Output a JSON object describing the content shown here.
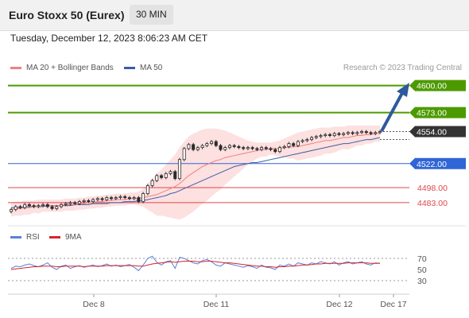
{
  "header": {
    "title": "Euro Stoxx 50 (Eurex)",
    "timeframe": "30 MIN",
    "datetime": "Tuesday, December 12, 2023 8:06:23 AM CET"
  },
  "legend": {
    "ma_bb": "MA 20 + Bollinger Bands",
    "ma50": "MA 50",
    "rsi": "RSI",
    "rsi_ma": "9MA"
  },
  "credit": "Research © 2023 Trading Central",
  "colors": {
    "candle": "#2b2b2b",
    "bollinger_fill": "#fde0e0",
    "ma20": "#f08080",
    "ma50": "#3b5da8",
    "resistance": "#4d9a00",
    "support_blue": "#2f65d6",
    "support_red": "#e0474c",
    "current": "#333333",
    "arrow": "#2d5a9a",
    "rsi": "#5b7fd6",
    "rsi_ma": "#d9222a"
  },
  "chart_data": [
    {
      "type": "candlestick",
      "y_range": [
        4467,
        4610
      ],
      "x_ticks": [
        "Dec 8",
        "Dec 11",
        "Dec 12",
        "Dec 17"
      ],
      "levels": [
        {
          "value": 4600.0,
          "label": "4600.00",
          "kind": "resistance"
        },
        {
          "value": 4573.0,
          "label": "4573.00",
          "kind": "resistance"
        },
        {
          "value": 4554.0,
          "label": "4554.00",
          "kind": "current"
        },
        {
          "value": 4522.0,
          "label": "4522.00",
          "kind": "support_blue"
        },
        {
          "value": 4498.0,
          "label": "4498.00",
          "kind": "support_red"
        },
        {
          "value": 4483.0,
          "label": "4483.00",
          "kind": "support_red"
        }
      ],
      "close": [
        4476,
        4479,
        4478,
        4481,
        4480,
        4479,
        4480,
        4481,
        4479,
        4477,
        4479,
        4481,
        4482,
        4483,
        4482,
        4484,
        4485,
        4484,
        4486,
        4487,
        4486,
        4488,
        4487,
        4488,
        4489,
        4488,
        4487,
        4488,
        4484,
        4492,
        4500,
        4505,
        4510,
        4508,
        4512,
        4514,
        4507,
        4526,
        4537,
        4541,
        4536,
        4538,
        4540,
        4542,
        4544,
        4540,
        4536,
        4538,
        4540,
        4539,
        4538,
        4537,
        4538,
        4537,
        4536,
        4538,
        4537,
        4536,
        4534,
        4538,
        4539,
        4542,
        4540,
        4544,
        4545,
        4546,
        4548,
        4549,
        4550,
        4551,
        4550,
        4552,
        4551,
        4552,
        4553,
        4552,
        4553,
        4554,
        4553,
        4552,
        4553,
        4554
      ],
      "ma20": [
        4476,
        4477,
        4477,
        4478,
        4478,
        4479,
        4479,
        4480,
        4480,
        4480,
        4480,
        4480,
        4481,
        4481,
        4481,
        4482,
        4482,
        4483,
        4483,
        4484,
        4484,
        4485,
        4485,
        4486,
        4486,
        4486,
        4487,
        4487,
        4487,
        4488,
        4489,
        4490,
        4491,
        4493,
        4495,
        4497,
        4499,
        4502,
        4506,
        4510,
        4513,
        4516,
        4519,
        4521,
        4523,
        4525,
        4526,
        4528,
        4529,
        4530,
        4531,
        4532,
        4533,
        4534,
        4535,
        4536,
        4536,
        4537,
        4537,
        4537,
        4538,
        4538,
        4539,
        4539,
        4540,
        4541,
        4542,
        4543,
        4544,
        4545,
        4545,
        4546,
        4547,
        4548,
        4548,
        4549,
        4550,
        4550,
        4551,
        4551,
        4552,
        4552
      ],
      "bb_upper": [
        4483,
        4484,
        4484,
        4485,
        4485,
        4485,
        4486,
        4486,
        4486,
        4486,
        4486,
        4486,
        4487,
        4487,
        4487,
        4488,
        4488,
        4489,
        4489,
        4490,
        4490,
        4491,
        4491,
        4492,
        4492,
        4492,
        4493,
        4493,
        4494,
        4497,
        4502,
        4507,
        4512,
        4516,
        4521,
        4526,
        4531,
        4538,
        4544,
        4549,
        4552,
        4554,
        4556,
        4557,
        4557,
        4557,
        4556,
        4555,
        4553,
        4551,
        4549,
        4547,
        4545,
        4544,
        4543,
        4543,
        4543,
        4543,
        4544,
        4545,
        4547,
        4549,
        4551,
        4553,
        4554,
        4555,
        4556,
        4557,
        4558,
        4558,
        4558,
        4559,
        4559,
        4559,
        4560,
        4560,
        4560,
        4560,
        4560,
        4560,
        4560,
        4560
      ],
      "bb_lower": [
        4469,
        4470,
        4470,
        4471,
        4471,
        4473,
        4472,
        4474,
        4474,
        4474,
        4474,
        4474,
        4475,
        4475,
        4475,
        4476,
        4476,
        4477,
        4477,
        4478,
        4478,
        4479,
        4479,
        4480,
        4480,
        4480,
        4481,
        4481,
        4480,
        4479,
        4476,
        4473,
        4470,
        4470,
        4469,
        4468,
        4467,
        4466,
        4468,
        4471,
        4474,
        4478,
        4482,
        4485,
        4489,
        4493,
        4496,
        4501,
        4505,
        4509,
        4513,
        4517,
        4521,
        4524,
        4527,
        4529,
        4529,
        4531,
        4530,
        4529,
        4529,
        4527,
        4527,
        4525,
        4526,
        4527,
        4528,
        4529,
        4530,
        4532,
        4532,
        4533,
        4535,
        4537,
        4536,
        4538,
        4540,
        4540,
        4542,
        4542,
        4544,
        4544
      ],
      "ma50": [
        4478,
        4478,
        4478,
        4479,
        4479,
        4479,
        4479,
        4479,
        4480,
        4480,
        4480,
        4480,
        4480,
        4480,
        4481,
        4481,
        4481,
        4481,
        4482,
        4482,
        4482,
        4482,
        4483,
        4483,
        4483,
        4484,
        4484,
        4484,
        4485,
        4485,
        4486,
        4487,
        4488,
        4489,
        4490,
        4492,
        4493,
        4495,
        4497,
        4499,
        4501,
        4503,
        4505,
        4507,
        4509,
        4511,
        4513,
        4515,
        4517,
        4519,
        4520,
        4521,
        4522,
        4523,
        4523,
        4524,
        4525,
        4526,
        4527,
        4528,
        4529,
        4530,
        4531,
        4532,
        4533,
        4534,
        4535,
        4536,
        4537,
        4538,
        4539,
        4540,
        4541,
        4542,
        4542,
        4543,
        4544,
        4545,
        4546,
        4546,
        4547,
        4548
      ]
    },
    {
      "type": "line",
      "y_ticks": [
        70,
        50,
        30
      ],
      "y_range": [
        20,
        80
      ],
      "rsi": [
        52,
        56,
        55,
        58,
        60,
        57,
        55,
        58,
        62,
        54,
        50,
        56,
        58,
        52,
        55,
        57,
        54,
        56,
        58,
        55,
        57,
        60,
        56,
        58,
        55,
        57,
        59,
        54,
        48,
        58,
        70,
        74,
        63,
        58,
        64,
        66,
        52,
        72,
        70,
        66,
        62,
        60,
        66,
        68,
        64,
        58,
        56,
        62,
        60,
        58,
        56,
        54,
        57,
        55,
        52,
        58,
        54,
        53,
        50,
        58,
        56,
        60,
        56,
        62,
        60,
        58,
        62,
        60,
        64,
        62,
        60,
        64,
        58,
        62,
        64,
        60,
        62,
        64,
        60,
        58,
        62,
        61
      ],
      "rsi_ma": [
        50,
        51,
        52,
        53,
        54,
        55,
        55,
        56,
        56,
        56,
        55,
        55,
        56,
        56,
        56,
        56,
        55,
        56,
        56,
        56,
        56,
        57,
        57,
        57,
        57,
        57,
        57,
        57,
        56,
        56,
        58,
        60,
        61,
        62,
        63,
        64,
        63,
        64,
        65,
        65,
        65,
        64,
        64,
        65,
        65,
        64,
        63,
        62,
        62,
        61,
        60,
        59,
        58,
        57,
        56,
        56,
        55,
        55,
        54,
        55,
        55,
        56,
        56,
        57,
        58,
        58,
        59,
        60,
        60,
        61,
        61,
        61,
        61,
        61,
        62,
        62,
        62,
        62,
        62,
        61,
        61,
        61
      ]
    }
  ]
}
